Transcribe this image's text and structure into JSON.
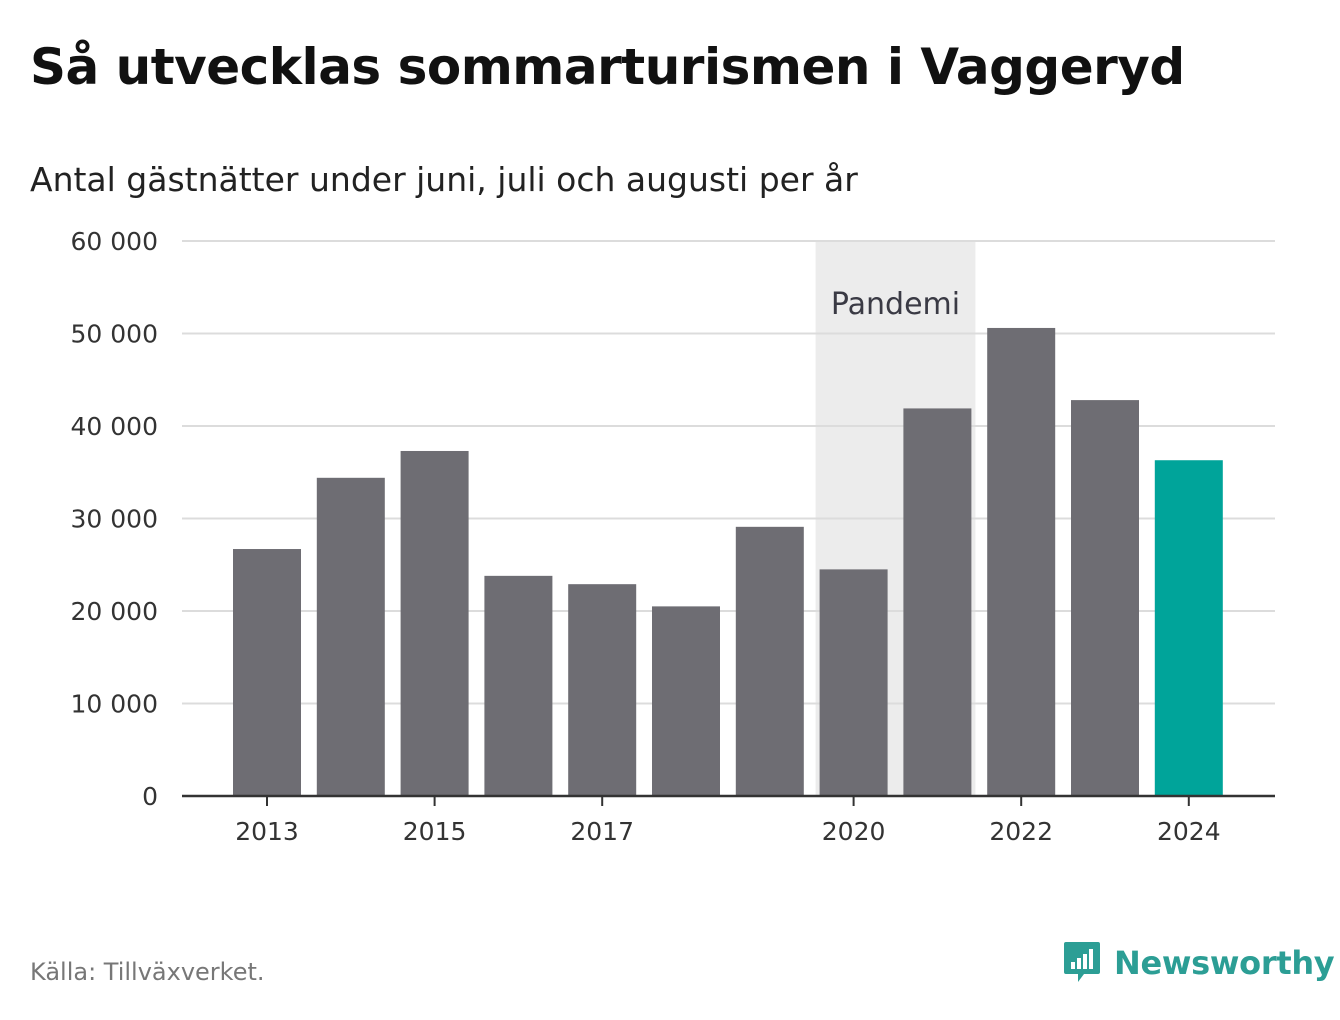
{
  "title": "Så utvecklas sommarturismen i Vaggeryd",
  "subtitle": "Antal gästnätter under juni, juli och augusti per år",
  "source": "Källa: Tillväxverket.",
  "brand": {
    "name": "Newsworthy",
    "icon": "newsworthy-logo-icon",
    "color": "#2c9e95"
  },
  "chart_data": {
    "type": "bar",
    "categories": [
      "2013",
      "2014",
      "2015",
      "2016",
      "2017",
      "2018",
      "2019",
      "2020",
      "2021",
      "2022",
      "2023",
      "2024"
    ],
    "x_tick_labels": [
      "2013",
      "2015",
      "2017",
      "2020",
      "2022",
      "2024"
    ],
    "values": [
      26700,
      34400,
      37300,
      23800,
      22900,
      20500,
      29100,
      24500,
      41900,
      50600,
      42800,
      36300
    ],
    "highlight_category": "2024",
    "bar_color": "#6e6d73",
    "highlight_color": "#00a49a",
    "ylim": [
      0,
      60000
    ],
    "y_ticks": [
      0,
      10000,
      20000,
      30000,
      40000,
      50000,
      60000
    ],
    "y_tick_labels": [
      "0",
      "10 000",
      "20 000",
      "30 000",
      "40 000",
      "50 000",
      "60 000"
    ],
    "grid": true,
    "annotation": {
      "label": "Pandemi",
      "from": "2020",
      "to": "2021",
      "color": "#ececec"
    },
    "xlabel": "",
    "ylabel": ""
  }
}
